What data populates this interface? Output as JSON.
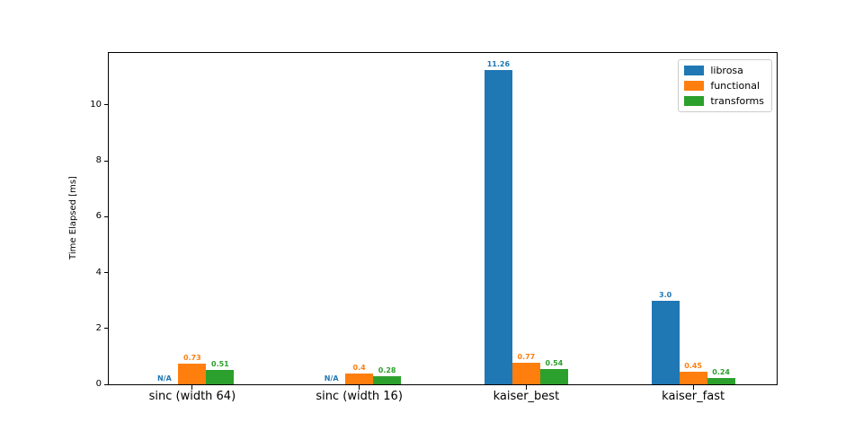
{
  "chart_data": {
    "type": "bar",
    "title": "",
    "xlabel": "",
    "ylabel": "Time Elapsed [ms]",
    "categories": [
      "sinc (width 64)",
      "sinc (width 16)",
      "kaiser_best",
      "kaiser_fast"
    ],
    "series": [
      {
        "name": "librosa",
        "color": "#1f77b4",
        "values": [
          null,
          null,
          11.26,
          3.0
        ],
        "labels": [
          "N/A",
          "N/A",
          "11.26",
          "3.0"
        ]
      },
      {
        "name": "functional",
        "color": "#ff7f0e",
        "values": [
          0.73,
          0.4,
          0.77,
          0.45
        ],
        "labels": [
          "0.73",
          "0.4",
          "0.77",
          "0.45"
        ]
      },
      {
        "name": "transforms",
        "color": "#2ca02c",
        "values": [
          0.51,
          0.28,
          0.54,
          0.24
        ],
        "labels": [
          "0.51",
          "0.28",
          "0.54",
          "0.24"
        ]
      }
    ],
    "yticks": [
      0,
      2,
      4,
      6,
      8,
      10
    ],
    "ylim": [
      0,
      11.86
    ],
    "grid": false,
    "legend": {
      "position": "upper right",
      "entries": [
        "librosa",
        "functional",
        "transforms"
      ]
    }
  }
}
